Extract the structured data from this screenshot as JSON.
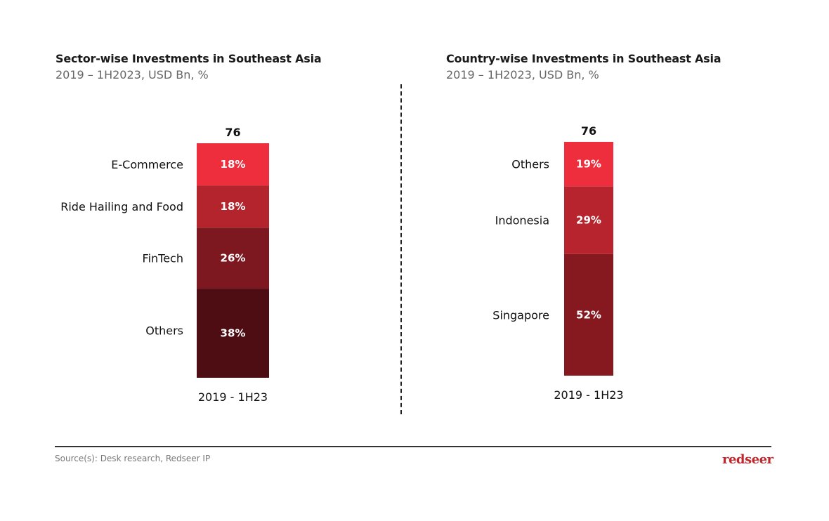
{
  "chart_data": [
    {
      "type": "bar",
      "stacked": true,
      "title": "Sector-wise Investments in Southeast Asia",
      "subtitle": "2019 – 1H2023, USD Bn, %",
      "categories": [
        "2019 - 1H23"
      ],
      "total": "76",
      "series": [
        {
          "name": "Others",
          "values": [
            38
          ],
          "label": "38%",
          "color": "#4e0c13"
        },
        {
          "name": "FinTech",
          "values": [
            26
          ],
          "label": "26%",
          "color": "#7e1820"
        },
        {
          "name": "Ride Hailing and Food",
          "values": [
            18
          ],
          "label": "18%",
          "color": "#b3242d"
        },
        {
          "name": "E-Commerce",
          "values": [
            18
          ],
          "label": "18%",
          "color": "#ee2e3d"
        }
      ],
      "ylim": [
        0,
        100
      ],
      "grid": false,
      "legend": "left-inline"
    },
    {
      "type": "bar",
      "stacked": true,
      "title": "Country-wise Investments in Southeast Asia",
      "subtitle": "2019 – 1H2023, USD Bn, %",
      "categories": [
        "2019 - 1H23"
      ],
      "total": "76",
      "series": [
        {
          "name": "Singapore",
          "values": [
            52
          ],
          "label": "52%",
          "color": "#861920"
        },
        {
          "name": "Indonesia",
          "values": [
            29
          ],
          "label": "29%",
          "color": "#b7242e"
        },
        {
          "name": "Others",
          "values": [
            19
          ],
          "label": "19%",
          "color": "#ee2e3d"
        }
      ],
      "ylim": [
        0,
        100
      ],
      "grid": false,
      "legend": "left-inline"
    }
  ],
  "footer": {
    "source": "Source(s): Desk research, Redseer IP",
    "logo": "redseer",
    "logo_color": "#c0272d"
  }
}
